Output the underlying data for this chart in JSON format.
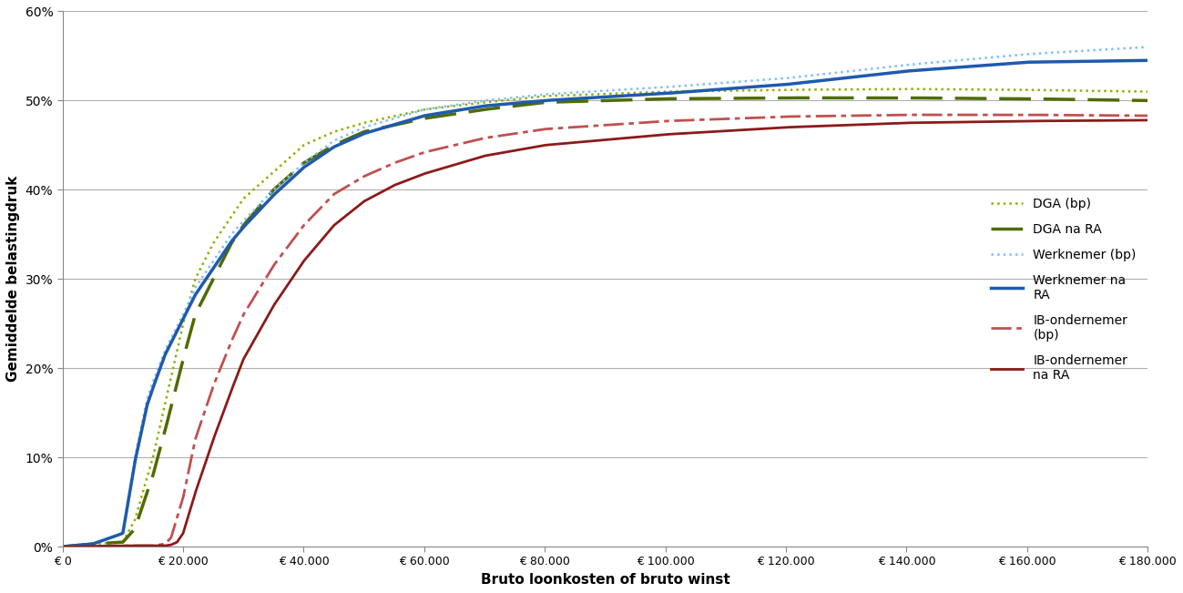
{
  "title": "",
  "xlabel": "Bruto loonkosten of bruto winst",
  "ylabel": "Gemiddelde belastingdruk",
  "x_max": 180000,
  "y_max": 0.6,
  "background_color": "#ffffff",
  "lines": {
    "DGA_bp": {
      "color": "#8db000",
      "linestyle": "dotted",
      "linewidth": 1.8,
      "label": "DGA (bp)"
    },
    "DGA_na_RA": {
      "color": "#4f6b00",
      "linestyle": "dashed",
      "linewidth": 2.5,
      "label": "DGA na RA"
    },
    "Werknemer_bp": {
      "color": "#7fbfff",
      "linestyle": "dotted",
      "linewidth": 1.8,
      "label": "Werknemer (bp)"
    },
    "Werknemer_na_RA": {
      "color": "#1f5aad",
      "linestyle": "solid",
      "linewidth": 2.5,
      "label": "Werknemer na\nRA"
    },
    "IB_bp": {
      "color": "#c05050",
      "linestyle": "dashdot",
      "linewidth": 2.0,
      "label": "IB-ondernemer\n(bp)"
    },
    "IB_na_RA": {
      "color": "#8b1a1a",
      "linestyle": "solid",
      "linewidth": 2.0,
      "label": "IB-ondernemer\nna RA"
    }
  },
  "x_ticks": [
    0,
    20000,
    40000,
    60000,
    80000,
    100000,
    120000,
    140000,
    160000,
    180000
  ],
  "x_tick_labels": [
    "€ 0",
    "€ 20.000",
    "€ 40.000",
    "€ 60.000",
    "€ 80.000",
    "€ 100.000",
    "€ 120.000",
    "€ 140.000",
    "€ 160.000",
    "€ 180.000"
  ],
  "y_ticks": [
    0.0,
    0.1,
    0.2,
    0.3,
    0.4,
    0.5,
    0.6
  ],
  "y_tick_labels": [
    "0%",
    "10%",
    "20%",
    "30%",
    "40%",
    "50%",
    "60%"
  ]
}
